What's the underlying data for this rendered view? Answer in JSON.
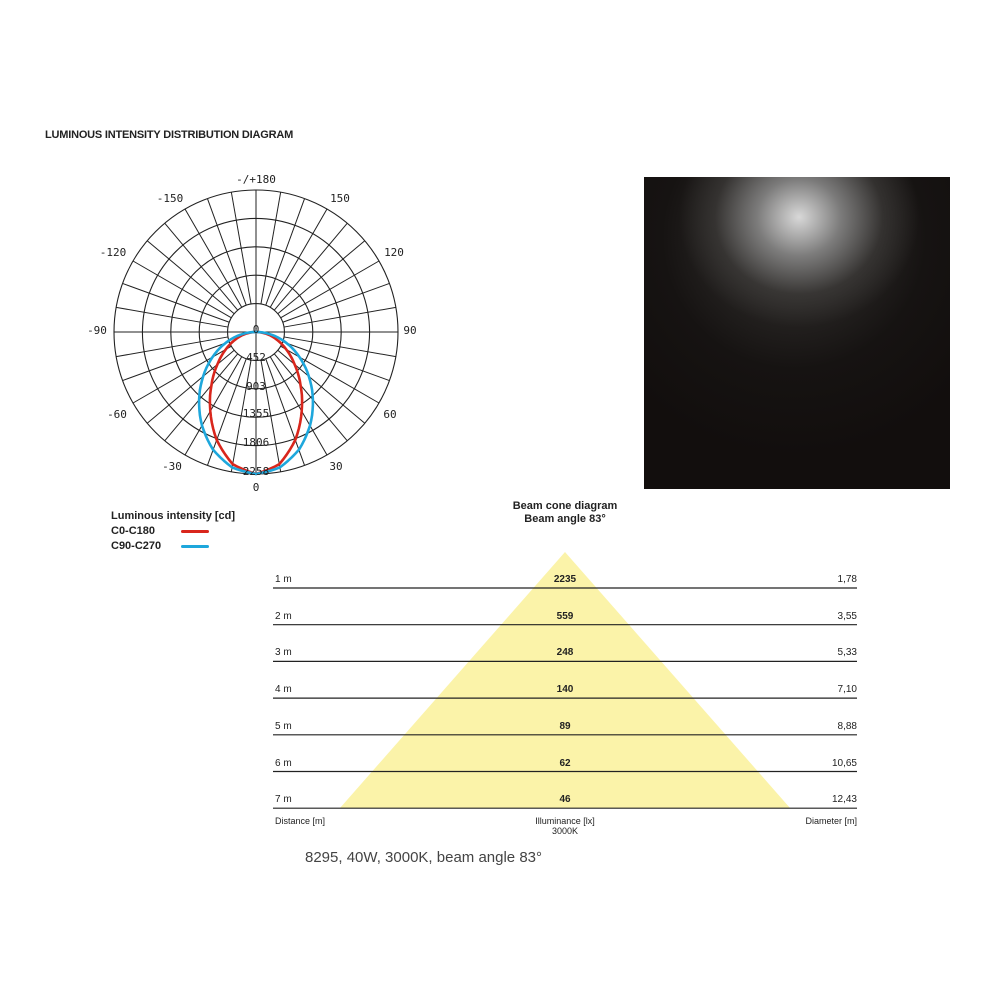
{
  "header": {
    "title": "LUMINOUS INTENSITY DISTRIBUTION DIAGRAM"
  },
  "chart_data": [
    {
      "type": "polar",
      "angle_labels": {
        "top": "-/+180",
        "m150": "-150",
        "p150": "150",
        "m120": "-120",
        "p120": "120",
        "m90": "-90",
        "p90": "90",
        "m60": "-60",
        "p60": "60",
        "m30": "-30",
        "p30": "30",
        "bottom": "0",
        "center": "0"
      },
      "ring_labels": [
        "452",
        "903",
        "1355",
        "1806",
        "2258"
      ],
      "ring_values": [
        452,
        903,
        1355,
        1806,
        2258
      ],
      "angle_step_deg": 10,
      "legend_title": "Luminous intensity [cd]",
      "angles_deg": [
        0,
        10,
        20,
        30,
        40,
        50,
        60,
        70,
        80,
        90
      ],
      "series": [
        {
          "name": "C0-C180",
          "color": "#d9261c",
          "values": [
            2258,
            2135,
            1826,
            1452,
            1100,
            801,
            554,
            347,
            167,
            0
          ]
        },
        {
          "name": "C90-C270",
          "color": "#1ea7dc",
          "values": [
            2258,
            2187,
            1993,
            1718,
            1408,
            1096,
            798,
            519,
            255,
            0
          ]
        }
      ]
    },
    {
      "type": "table",
      "title": "Beam cone diagram",
      "subtitle": "Beam angle 83°",
      "beam_angle_deg": 83,
      "cone_color": "#fbf3a9",
      "rows": [
        {
          "distance": "1 m",
          "illuminance": "2235",
          "diameter": "1,78"
        },
        {
          "distance": "2 m",
          "illuminance": "559",
          "diameter": "3,55"
        },
        {
          "distance": "3 m",
          "illuminance": "248",
          "diameter": "5,33"
        },
        {
          "distance": "4 m",
          "illuminance": "140",
          "diameter": "7,10"
        },
        {
          "distance": "5 m",
          "illuminance": "89",
          "diameter": "8,88"
        },
        {
          "distance": "6 m",
          "illuminance": "62",
          "diameter": "10,65"
        },
        {
          "distance": "7 m",
          "illuminance": "46",
          "diameter": "12,43"
        }
      ],
      "footer": {
        "distance": "Distance [m]",
        "illuminance": "Illuminance [lx]",
        "cct": "3000K",
        "diameter": "Diameter [m]"
      }
    }
  ],
  "spec": "8295, 40W, 3000K, beam angle 83°"
}
